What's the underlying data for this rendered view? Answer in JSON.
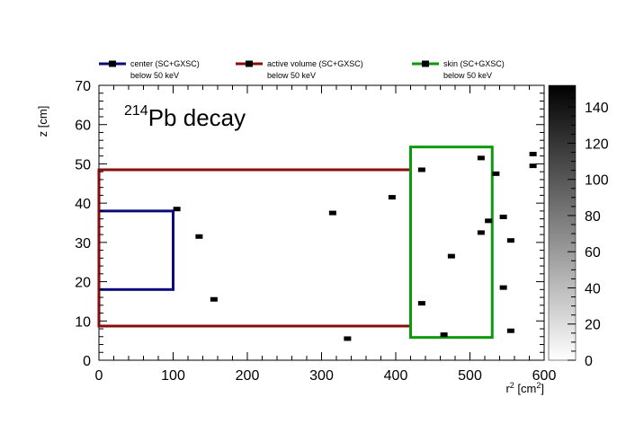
{
  "chart_data": {
    "type": "scatter",
    "title": {
      "superscript": "214",
      "main": "Pb decay"
    },
    "xlabel": {
      "base": "r",
      "exp": "2",
      "unit_open": " [cm",
      "unit_exp": "2",
      "unit_close": "]"
    },
    "ylabel": "z [cm]",
    "xlim": [
      0,
      600
    ],
    "ylim": [
      0,
      70
    ],
    "xticks": [
      0,
      100,
      200,
      300,
      400,
      500,
      600
    ],
    "yticks": [
      0,
      10,
      20,
      30,
      40,
      50,
      60,
      70
    ],
    "colorbar": {
      "range": [
        0,
        152
      ],
      "ticks": [
        0,
        20,
        40,
        60,
        80,
        100,
        120,
        140
      ]
    },
    "grid": false,
    "legend_position": "top",
    "regions": [
      {
        "name": "center (SC+GXSC)",
        "note": "below 50 keV",
        "color": "#0b0b7d",
        "r2": [
          0,
          100
        ],
        "z": [
          18,
          38
        ]
      },
      {
        "name": "active volume (SC+GXSC)",
        "note": "below 50 keV",
        "color": "#8b0a0a",
        "r2": [
          0,
          420
        ],
        "z": [
          8.7,
          48.5
        ]
      },
      {
        "name": "skin (SC+GXSC)",
        "note": "below 50 keV",
        "color": "#0a9a0a",
        "r2": [
          420,
          530
        ],
        "z": [
          5.8,
          54.3
        ]
      }
    ],
    "points": [
      {
        "x": 105,
        "y": 38.5
      },
      {
        "x": 135,
        "y": 31.5
      },
      {
        "x": 155,
        "y": 15.5
      },
      {
        "x": 315,
        "y": 37.5
      },
      {
        "x": 335,
        "y": 5.5
      },
      {
        "x": 395,
        "y": 41.5
      },
      {
        "x": 435,
        "y": 48.5
      },
      {
        "x": 435,
        "y": 14.5
      },
      {
        "x": 465,
        "y": 6.5
      },
      {
        "x": 475,
        "y": 26.5
      },
      {
        "x": 515,
        "y": 51.5
      },
      {
        "x": 515,
        "y": 32.5
      },
      {
        "x": 525,
        "y": 35.5
      },
      {
        "x": 535,
        "y": 47.5
      },
      {
        "x": 545,
        "y": 36.5
      },
      {
        "x": 545,
        "y": 18.5
      },
      {
        "x": 555,
        "y": 30.5
      },
      {
        "x": 555,
        "y": 7.5
      },
      {
        "x": 585,
        "y": 52.5
      },
      {
        "x": 585,
        "y": 49.5
      }
    ]
  }
}
